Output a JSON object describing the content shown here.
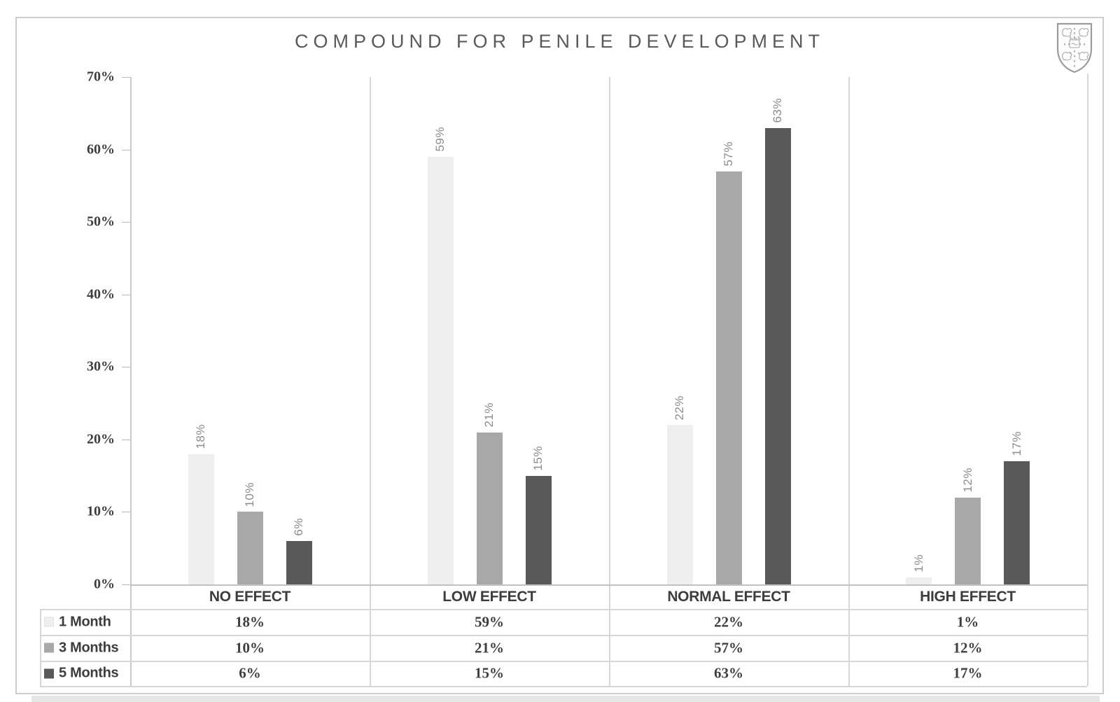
{
  "title": "COMPOUND FOR PENILE DEVELOPMENT",
  "logo": {
    "name": "university-crest",
    "description": "heraldic shield with four lions and central book"
  },
  "chart_data": {
    "type": "bar",
    "title": "COMPOUND FOR PENILE DEVELOPMENT",
    "categories": [
      "NO EFFECT",
      "LOW EFFECT",
      "NORMAL EFFECT",
      "HIGH EFFECT"
    ],
    "series": [
      {
        "name": "1 Month",
        "values": [
          18,
          59,
          22,
          1
        ],
        "color": "#efefef"
      },
      {
        "name": "3 Months",
        "values": [
          10,
          21,
          57,
          12
        ],
        "color": "#a8a8a8"
      },
      {
        "name": "5 Months",
        "values": [
          6,
          15,
          63,
          17
        ],
        "color": "#595959"
      }
    ],
    "ylabel": "",
    "xlabel": "",
    "ylim": [
      0,
      70
    ],
    "y_ticks": [
      "0%",
      "10%",
      "20%",
      "30%",
      "40%",
      "50%",
      "60%",
      "70%"
    ],
    "data_labels": [
      [
        "18%",
        "59%",
        "22%",
        "1%"
      ],
      [
        "10%",
        "21%",
        "57%",
        "12%"
      ],
      [
        "6%",
        "15%",
        "63%",
        "17%"
      ]
    ],
    "data_label_rotation": -90,
    "grid": "vertical category separators only",
    "legend_position": "table rows below chart"
  },
  "table": {
    "column_headers": [
      "NO EFFECT",
      "LOW EFFECT",
      "NORMAL EFFECT",
      "HIGH EFFECT"
    ],
    "row_headers": [
      "1 Month",
      "3 Months",
      "5 Months"
    ],
    "rows": [
      [
        "18%",
        "59%",
        "22%",
        "1%"
      ],
      [
        "10%",
        "21%",
        "57%",
        "12%"
      ],
      [
        "6%",
        "15%",
        "63%",
        "17%"
      ]
    ]
  },
  "colors": {
    "series_1_month": "#efefef",
    "series_3_months": "#a8a8a8",
    "series_5_months": "#595959",
    "title_text": "#5a5a5a",
    "axis_text": "#3e3e3e",
    "bar_label_text": "#8c8c8c",
    "grid_line": "#d7d7d7",
    "frame_border": "#cdcdcd"
  }
}
